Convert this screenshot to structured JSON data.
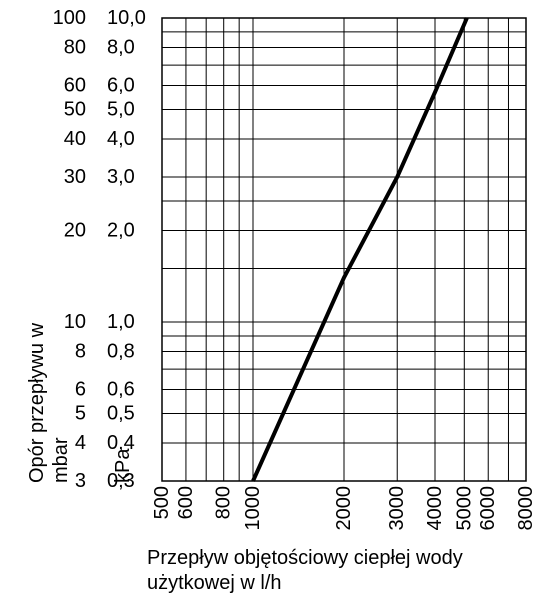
{
  "chart_data": {
    "type": "line",
    "x_scale": "log",
    "y_scale": "log",
    "grid": true,
    "legend": "none",
    "xlim": [
      500,
      8000
    ],
    "ylim_mbar": [
      3,
      100
    ],
    "ylim_kpa": [
      0.3,
      10.0
    ],
    "xlabel_lines": [
      "Przepływ objętościowy ciepłej wody",
      "użytkowej w l/h"
    ],
    "ylabel_mbar_lines": [
      "Opór przepływu w",
      "mbar"
    ],
    "ylabel_kpa": "kPa",
    "x_tick_labels": [
      {
        "value": 500,
        "label": "500"
      },
      {
        "value": 600,
        "label": "600"
      },
      {
        "value": 800,
        "label": "800"
      },
      {
        "value": 1000,
        "label": "1000"
      },
      {
        "value": 2000,
        "label": "2000"
      },
      {
        "value": 3000,
        "label": "3000"
      },
      {
        "value": 4000,
        "label": "4000"
      },
      {
        "value": 5000,
        "label": "5000"
      },
      {
        "value": 6000,
        "label": "6000"
      },
      {
        "value": 8000,
        "label": "8000"
      }
    ],
    "y_tick_labels_mbar": [
      {
        "value": 3,
        "label": "3"
      },
      {
        "value": 4,
        "label": "4"
      },
      {
        "value": 5,
        "label": "5"
      },
      {
        "value": 6,
        "label": "6"
      },
      {
        "value": 8,
        "label": "8"
      },
      {
        "value": 10,
        "label": "10"
      },
      {
        "value": 20,
        "label": "20"
      },
      {
        "value": 30,
        "label": "30"
      },
      {
        "value": 40,
        "label": "40"
      },
      {
        "value": 50,
        "label": "50"
      },
      {
        "value": 60,
        "label": "60"
      },
      {
        "value": 80,
        "label": "80"
      },
      {
        "value": 100,
        "label": "100"
      }
    ],
    "y_tick_labels_kpa": [
      {
        "value": 0.3,
        "label": "0,3"
      },
      {
        "value": 0.4,
        "label": "0,4"
      },
      {
        "value": 0.5,
        "label": "0,5"
      },
      {
        "value": 0.6,
        "label": "0,6"
      },
      {
        "value": 0.8,
        "label": "0,8"
      },
      {
        "value": 1.0,
        "label": "1,0"
      },
      {
        "value": 2.0,
        "label": "2,0"
      },
      {
        "value": 3.0,
        "label": "3,0"
      },
      {
        "value": 4.0,
        "label": "4,0"
      },
      {
        "value": 5.0,
        "label": "5,0"
      },
      {
        "value": 6.0,
        "label": "6,0"
      },
      {
        "value": 8.0,
        "label": "8,0"
      },
      {
        "value": 10.0,
        "label": "10,0"
      }
    ],
    "x_gridlines": [
      500,
      600,
      700,
      800,
      900,
      1000,
      2000,
      3000,
      4000,
      5000,
      6000,
      7000,
      8000
    ],
    "y_gridlines_mbar": [
      3,
      4,
      5,
      6,
      7,
      8,
      9,
      10,
      15,
      20,
      25,
      30,
      40,
      50,
      60,
      70,
      80,
      90,
      100
    ],
    "series": [
      {
        "color": "#000000",
        "points": [
          {
            "x": 1000,
            "y": 3
          },
          {
            "x": 2000,
            "y": 14
          },
          {
            "x": 3000,
            "y": 30
          },
          {
            "x": 4000,
            "y": 57
          },
          {
            "x": 5100,
            "y": 100
          }
        ]
      }
    ]
  }
}
